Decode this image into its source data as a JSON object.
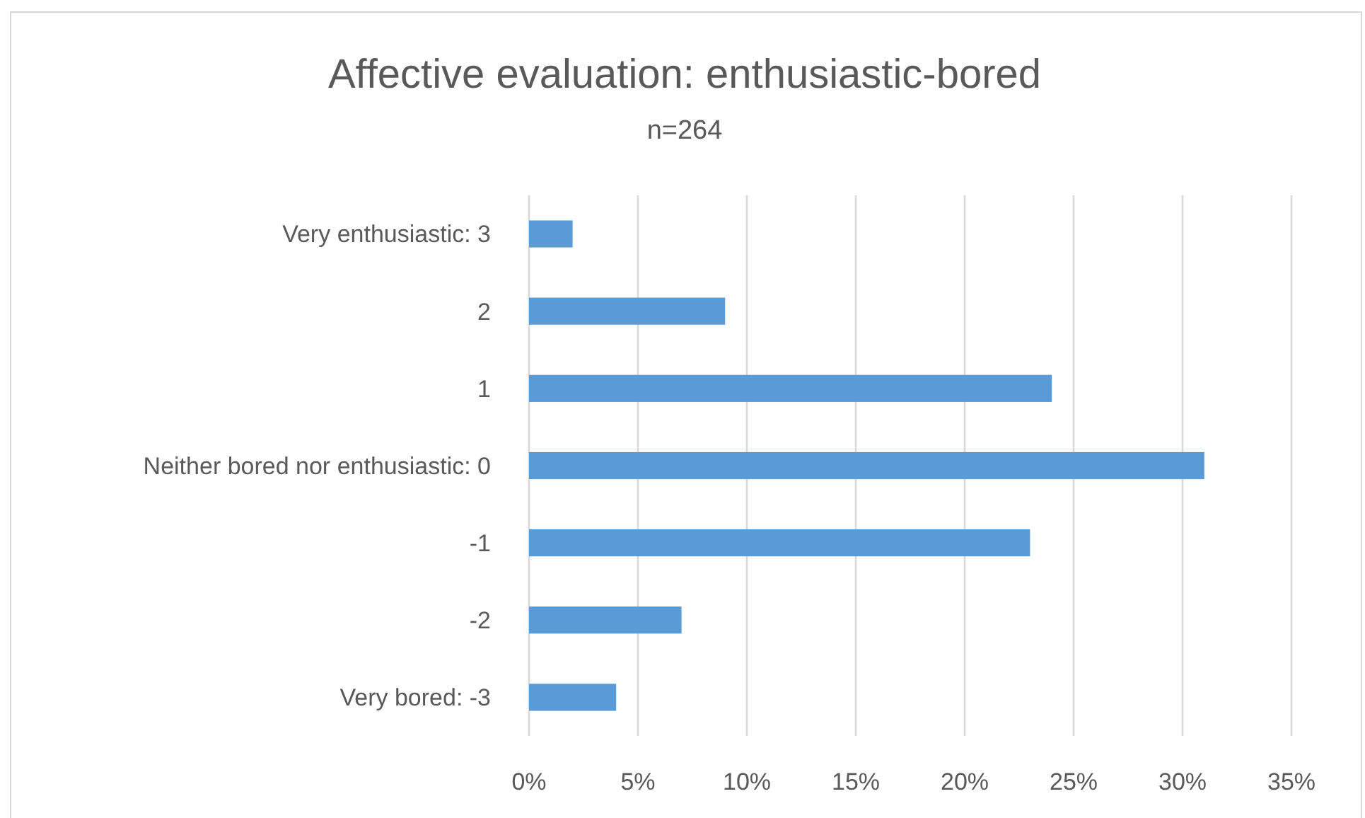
{
  "chart_data": {
    "type": "bar",
    "orientation": "horizontal",
    "title": "Affective evaluation: enthusiastic-bored",
    "subtitle": "n=264",
    "categories": [
      "Very enthusiastic: 3",
      "2",
      "1",
      "Neither bored nor enthusiastic: 0",
      "-1",
      "-2",
      "Very bored: -3"
    ],
    "values": [
      2,
      9,
      24,
      31,
      23,
      7,
      4
    ],
    "color": "#5b9bd5",
    "xlim": [
      0,
      35
    ],
    "xticks": [
      {
        "value": 0,
        "label": "0%"
      },
      {
        "value": 5,
        "label": "5%"
      },
      {
        "value": 10,
        "label": "10%"
      },
      {
        "value": 15,
        "label": "15%"
      },
      {
        "value": 20,
        "label": "20%"
      },
      {
        "value": 25,
        "label": "25%"
      },
      {
        "value": 30,
        "label": "30%"
      },
      {
        "value": 35,
        "label": "35%"
      }
    ],
    "grid": "x"
  }
}
